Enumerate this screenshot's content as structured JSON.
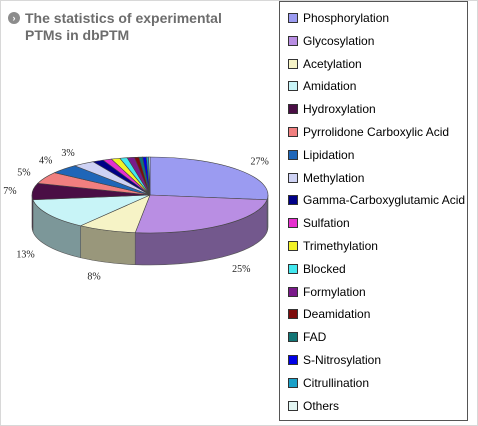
{
  "title_icon": "chevron-right-circle-icon",
  "title": "The statistics of experimental PTMs in dbPTM",
  "chart_data": {
    "type": "pie",
    "title": "The statistics of experimental PTMs in dbPTM",
    "legend_placement": "right",
    "slices": [
      {
        "name": "Phosphorylation",
        "value": 27,
        "label": "27%",
        "color": "#9b9bf1"
      },
      {
        "name": "Glycosylation",
        "value": 25,
        "label": "25%",
        "color": "#b98ee3"
      },
      {
        "name": "Acetylation",
        "value": 8,
        "label": "8%",
        "color": "#f6f3c6"
      },
      {
        "name": "Amidation",
        "value": 13,
        "label": "13%",
        "color": "#c8f4f7"
      },
      {
        "name": "Hydroxylation",
        "value": 7,
        "label": "7%",
        "color": "#4a0e45"
      },
      {
        "name": "Pyrrolidone Carboxylic Acid",
        "value": 5,
        "label": "5%",
        "color": "#f07f7f"
      },
      {
        "name": "Lipidation",
        "value": 4,
        "label": "4%",
        "color": "#1f66b8"
      },
      {
        "name": "Methylation",
        "value": 3,
        "label": "3%",
        "color": "#ced2f4"
      },
      {
        "name": "Gamma-Carboxyglutamic Acid",
        "value": 1.5,
        "label": "",
        "color": "#000088"
      },
      {
        "name": "Sulfation",
        "value": 1.2,
        "label": "",
        "color": "#e62fcf"
      },
      {
        "name": "Trimethylation",
        "value": 1.2,
        "label": "",
        "color": "#f2f227"
      },
      {
        "name": "Blocked",
        "value": 1,
        "label": "",
        "color": "#42e7ee"
      },
      {
        "name": "Formylation",
        "value": 1,
        "label": "",
        "color": "#7a1a8a"
      },
      {
        "name": "Deamidation",
        "value": 0.6,
        "label": "",
        "color": "#7d0b0b"
      },
      {
        "name": "FAD",
        "value": 0.5,
        "label": "",
        "color": "#127575"
      },
      {
        "name": "S-Nitrosylation",
        "value": 0.5,
        "label": "",
        "color": "#0000e6"
      },
      {
        "name": "Citrullination",
        "value": 0.3,
        "label": "",
        "color": "#1aa0c8"
      },
      {
        "name": "Others",
        "value": 0.2,
        "label": "",
        "color": "#e2f5f2"
      }
    ]
  }
}
